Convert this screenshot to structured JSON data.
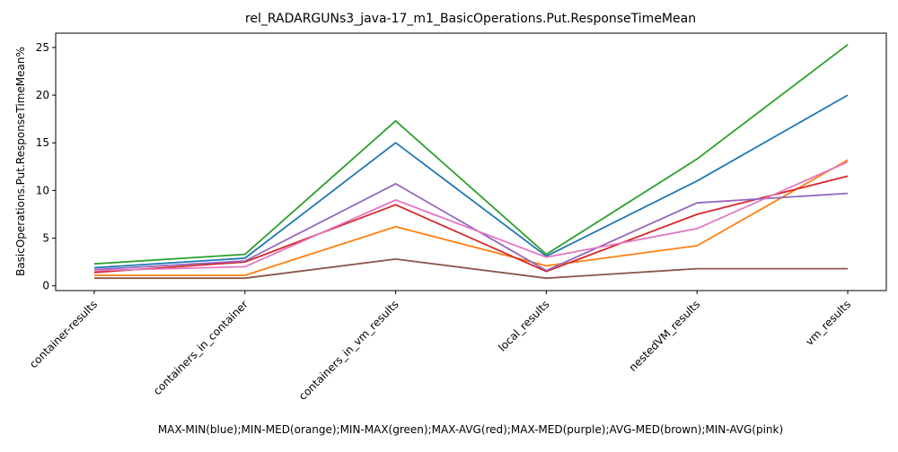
{
  "chart_data": {
    "type": "line",
    "title": "rel_RADARGUNs3_java-17_m1_BasicOperations.Put.ResponseTimeMean",
    "xlabel": "MAX-MIN(blue);MIN-MED(orange);MIN-MAX(green);MAX-AVG(red);MAX-MED(purple);AVG-MED(brown);MIN-AVG(pink)",
    "ylabel": "BasicOperations.Put.ResponseTimeMean%",
    "categories": [
      "container-results",
      "containers_in_container",
      "containers_in_vm_results",
      "local_results",
      "nestedVM_results",
      "vm_results"
    ],
    "ylim": [
      -0.5,
      26.5
    ],
    "yticks": [
      0,
      5,
      10,
      15,
      20,
      25
    ],
    "grid": false,
    "legend": "none",
    "series": [
      {
        "color": "#1f77b4",
        "values": [
          1.9,
          2.9,
          15.0,
          3.1,
          11.0,
          20.0
        ]
      },
      {
        "color": "#ff7f0e",
        "values": [
          1.1,
          1.1,
          6.2,
          2.1,
          4.2,
          13.2
        ]
      },
      {
        "color": "#2ca02c",
        "values": [
          2.3,
          3.3,
          17.3,
          3.3,
          13.3,
          25.3
        ]
      },
      {
        "color": "#d62728",
        "values": [
          1.4,
          2.5,
          8.5,
          1.5,
          7.5,
          11.5
        ]
      },
      {
        "color": "#9467bd",
        "values": [
          1.7,
          2.6,
          10.7,
          1.6,
          8.7,
          9.7
        ]
      },
      {
        "color": "#8c564b",
        "values": [
          0.8,
          0.8,
          2.8,
          0.8,
          1.8,
          1.8
        ]
      },
      {
        "color": "#e377c2",
        "values": [
          1.6,
          2.0,
          9.0,
          3.0,
          6.0,
          13.0
        ]
      }
    ]
  }
}
